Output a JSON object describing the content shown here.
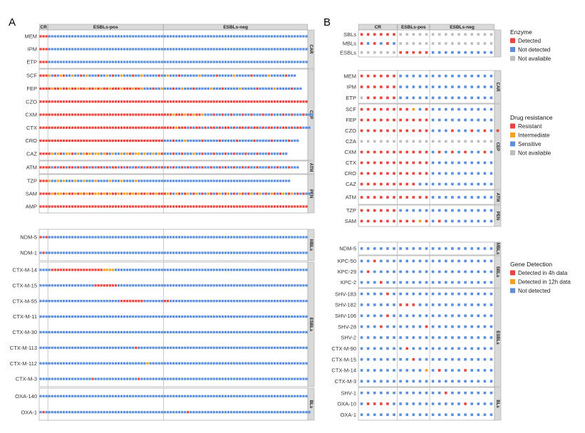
{
  "chart_data": {
    "type": "heatmap",
    "colors": {
      "R": "#e8453c",
      "I": "#f4a21d",
      "S": "#5b8fdc",
      "N": "#bdbdbd"
    },
    "panelA": {
      "label": "A",
      "columns": [
        "CR",
        "ESBLs-pos",
        "ESBLs-neg"
      ],
      "counts": [
        3,
        40,
        50
      ],
      "blocks": [
        {
          "group": "CAR",
          "rows": [
            {
              "name": "MEM",
              "pattern": "R*3,S*90"
            },
            {
              "name": "IPM",
              "pattern": "R*3,S*90"
            },
            {
              "name": "ETP",
              "pattern": "R*3,S*90"
            }
          ]
        },
        {
          "group": "CEP",
          "rows": [
            {
              "name": "SCF",
              "pattern": "R*3,I,S,R,S,I,R,S*2,I,S*2,R,S,I,S*3,R,S*2,I,S,R,S*2,I,S*3,R,S*2,I,S*5,R,S*2,I,S*3,R,S*6,I,S*5,R,S*5,I,S*5,R,S*5,I,S*5,R,S*3"
            },
            {
              "name": "FEP",
              "pattern": "R*3,R,I,R,R,I,R,R,I,R*2,I,R,R,I,R*2,I,R,I,R*2,I,R*3,I,R*3,I,R*2,I,S*3,R,S*2,I,S*3,R,S*2,I,S*3,R,S*5,I,S*3,R,S*5,I,S*5,R,S*5,I,S*5,R,S*3"
            },
            {
              "name": "CZO",
              "pattern": "R*93"
            },
            {
              "name": "CXM",
              "pattern": "R*3,R*40,R*3,I,R*3,I,R*2,I,R*2,I,S*3,R,S*2,R,S*2,R,S*3,R,S*2,R,S*3,R,S*2,R,S*3,R,S*2,R,S*3,R,S*3"
            },
            {
              "name": "CTX",
              "pattern": "R*3,R*40,R*4,I,R*3,S,R,S,R*2,S,R,S,R*2,S,R,S,R*2,S,R,S,R*2,S,R,S,R*2,S,R,S,R*2,S,R,S,R*2,S,R,S,R*2,S*3"
            },
            {
              "name": "CRO",
              "pattern": "R*3,R*40,S*3,R,S*3,I,S*5,R,S*5,R,S*5,R,S*5,R,S*5,R,S*5,R,S*3"
            },
            {
              "name": "CAZ",
              "pattern": "R*3,R,I,S,I,R,S,I*2,R,S,I,S,I,R,I,S,I*2,S,I,R,S,I,S*2,I,S,I,R,S,I*2,S,I,S*2,I,S,I,R,S*3,R,S*2,R,S*3,I,S*2,R,S*3,R,S*3,R,S*2,R,S*3,R,S*3,R,S*3,R,S*3,R,S*2"
            }
          ]
        },
        {
          "group": "ATM",
          "rows": [
            {
              "name": "ATM",
              "pattern": "R*3,R,S,R,S,R*2,S,R*2,S,R,S,R*2,S,R,S,R*2,S,R,S,R*2,S,R,S,R,S*2,R,S,R,S,R*2,S,R,S,R,S,R,S,R,S*2,R,S,R,S*2,R,S,R,S*2,R,S*2,R,S,R,S*2,R,S*2,R,S,R,S*2,R,S*3,R,S*2,R,S*3,R,S*3"
            }
          ]
        },
        {
          "group": "PEN",
          "rows": [
            {
              "name": "TZP",
              "pattern": "R*3,I,S*2,I,S,I,S*3,I,S*2,I,S*3,I,S*4,I,S*3,I,S*4,I,S*3,S*50"
            },
            {
              "name": "SAM",
              "pattern": "R*3,R,I,R,I*2,R,I,R*2,I,R,I,R,I,R*2,I*2,R,I,R,I,R*2,I,R,I*2,R,I,R,I,R*2,I,R*2,I,R*3,I,R,S,I,R,S,R,I,S,R,I,S,R,S,I,R,S,R,I,S,R,I,S,R,S,I,R,S,R,I,S,R,I,S,R,S,I,R,S,R,I,S,R,I,S,R,S,R,S*2"
            },
            {
              "name": "AMP",
              "pattern": "R*93"
            }
          ]
        },
        {
          "group": "MBLs",
          "rows": [
            {
              "name": "NDM-5",
              "pattern": "R,S,R,S*90"
            },
            {
              "name": "NDM-1",
              "pattern": "S,R,S*91"
            }
          ]
        },
        {
          "group": "ESBLs",
          "rows": [
            {
              "name": "CTX-M-14",
              "pattern": "S*4,R*18,I*4,S*67"
            },
            {
              "name": "CTX-M-15",
              "pattern": "S*3,S*16,R*8,S*66"
            },
            {
              "name": "CTX-M-55",
              "pattern": "S*3,S*25,R*8,S*7,R*2,S*48"
            },
            {
              "name": "CTX-M-11",
              "pattern": "S*93"
            },
            {
              "name": "CTX-M-30",
              "pattern": "S*93"
            },
            {
              "name": "CTX-M-113",
              "pattern": "S*33,R,S*59"
            },
            {
              "name": "CTX-M-112",
              "pattern": "S*3,S*34,I,S*55"
            },
            {
              "name": "CTX-M-3",
              "pattern": "S*3,S*15,R,S*15,R,S*58"
            }
          ]
        },
        {
          "group": "BLs",
          "rows": [
            {
              "name": "OXA-140",
              "pattern": "S*93"
            },
            {
              "name": "OXA-1",
              "pattern": "S,R,S*3,S*46,R,S*42"
            }
          ]
        }
      ]
    },
    "panelB": {
      "label": "B",
      "columns": [
        "CR",
        "ESBLs-pos",
        "ESBLs-neg"
      ],
      "counts": [
        6,
        5,
        10
      ],
      "blocks": [
        {
          "group": "",
          "rows": [
            {
              "name": "SBLs",
              "pattern": "R*6,N*15"
            },
            {
              "name": "MBLs",
              "pattern": "R,S,R,S,R,S,N*15"
            },
            {
              "name": "ESBLs",
              "pattern": "N*6,R*5,S*10"
            }
          ]
        },
        {
          "group": "CAR",
          "rows": [
            {
              "name": "MEM",
              "pattern": "R*6,S*15"
            },
            {
              "name": "IPM",
              "pattern": "R*6,S*15"
            },
            {
              "name": "ETP",
              "pattern": "N,R*5,S*15"
            }
          ]
        },
        {
          "group": "CEP",
          "rows": [
            {
              "name": "SCF",
              "pattern": "R*6,R*2,I,S,R,S*10"
            },
            {
              "name": "FEP",
              "pattern": "R*6,R*5,S*10"
            },
            {
              "name": "CZO",
              "pattern": "R*6,R*5,S*3,R,S*2,R,S,R,S,R"
            },
            {
              "name": "CZA",
              "pattern": "N*21"
            },
            {
              "name": "CXM",
              "pattern": "R*6,R*5,S,R,S,R,S,R,S*2,R,S"
            },
            {
              "name": "CTX",
              "pattern": "R*6,R*5,S*10"
            },
            {
              "name": "CRO",
              "pattern": "R*6,R*5,S*10"
            },
            {
              "name": "CAZ",
              "pattern": "R*6,R*3,S*12"
            }
          ]
        },
        {
          "group": "ATM",
          "rows": [
            {
              "name": "ATM",
              "pattern": "R*6,R*5,S*10"
            }
          ]
        },
        {
          "group": "PEN",
          "rows": [
            {
              "name": "TZP",
              "pattern": "R*6,S*15"
            },
            {
              "name": "SAM",
              "pattern": "R*6,R*3,I,R,S,R,S*8"
            }
          ]
        },
        {
          "group": "MBLs",
          "rows": [
            {
              "name": "NDM-5",
              "pattern": "S*21"
            }
          ]
        },
        {
          "group": "SBLs",
          "rows": [
            {
              "name": "KPC-50",
              "pattern": "S*2,R,S*18"
            },
            {
              "name": "KPC-29",
              "pattern": "S,R,S*19"
            },
            {
              "name": "KPC-2",
              "pattern": "S*3,R,S*17"
            }
          ]
        },
        {
          "group": "ESBLs",
          "rows": [
            {
              "name": "SHV-183",
              "pattern": "S*4,R,S*16"
            },
            {
              "name": "SHV-182",
              "pattern": "S*6,R*3,S*12"
            },
            {
              "name": "SHV-106",
              "pattern": "S*4,R,S*16"
            },
            {
              "name": "SHV-28",
              "pattern": "S*3,R,S*6,R,S*10"
            },
            {
              "name": "SHV-2",
              "pattern": "S*21"
            },
            {
              "name": "CTX-M-90",
              "pattern": "S*7,R,S*13"
            },
            {
              "name": "CTX-M-15",
              "pattern": "S*8,R,S*12"
            },
            {
              "name": "CTX-M-14",
              "pattern": "S*10,I,S,R,S*3,R,S*4"
            },
            {
              "name": "CTX-M-3",
              "pattern": "S*21"
            }
          ]
        },
        {
          "group": "BLs",
          "rows": [
            {
              "name": "SHV-1",
              "pattern": "S*13,R,S*7"
            },
            {
              "name": "OXA-10",
              "pattern": "S,R*4,S*11,R,S*4"
            },
            {
              "name": "OXA-1",
              "pattern": "S*21"
            }
          ]
        }
      ]
    },
    "legends": [
      {
        "title": "Enzyme",
        "items": [
          {
            "label": "Detected",
            "color": "#e8453c"
          },
          {
            "label": "Not detected",
            "color": "#5b8fdc"
          },
          {
            "label": "Not avaliable",
            "color": "#bdbdbd"
          }
        ]
      },
      {
        "title": "Drug resistance",
        "items": [
          {
            "label": "Resistant",
            "color": "#e8453c"
          },
          {
            "label": "Intermediate",
            "color": "#f4a21d"
          },
          {
            "label": "Sensitive",
            "color": "#5b8fdc"
          },
          {
            "label": "Not avaliable",
            "color": "#bdbdbd"
          }
        ]
      },
      {
        "title": "Gene Detection",
        "items": [
          {
            "label": "Detected in 4h data",
            "color": "#e8453c"
          },
          {
            "label": "Detected in 12h data",
            "color": "#f4a21d"
          },
          {
            "label": "Not detected",
            "color": "#5b8fdc"
          }
        ]
      }
    ]
  }
}
